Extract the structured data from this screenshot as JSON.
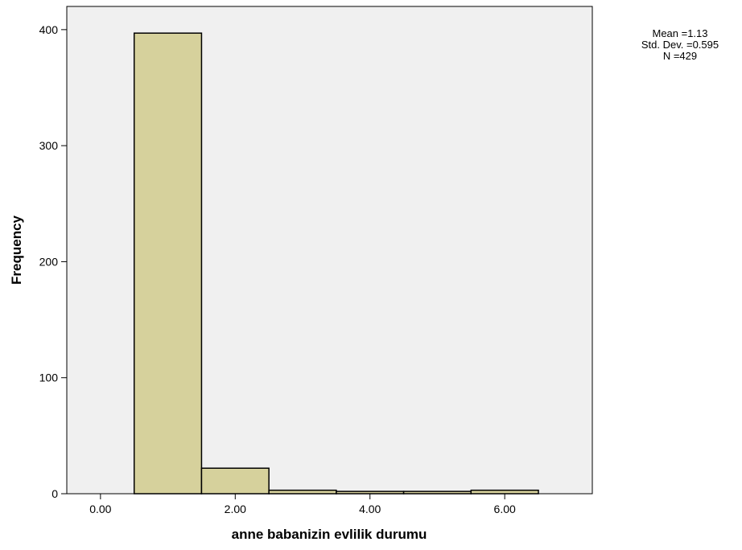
{
  "chart_data": {
    "type": "bar",
    "xlabel": "anne babanizin evlilik durumu",
    "ylabel": "Frequency",
    "xlim": [
      -0.5,
      7.3
    ],
    "ylim": [
      0,
      420
    ],
    "x_ticks": [
      0,
      2,
      4,
      6
    ],
    "x_tick_labels": [
      "0.00",
      "2.00",
      "4.00",
      "6.00"
    ],
    "y_ticks": [
      0,
      100,
      200,
      300,
      400
    ],
    "y_tick_labels": [
      "0",
      "100",
      "200",
      "300",
      "400"
    ],
    "bin_width": 1,
    "bins": [
      {
        "center": 1,
        "value": 397
      },
      {
        "center": 2,
        "value": 22
      },
      {
        "center": 3,
        "value": 3
      },
      {
        "center": 4,
        "value": 2
      },
      {
        "center": 5,
        "value": 2
      },
      {
        "center": 6,
        "value": 3
      }
    ],
    "grid": false,
    "legend": "none",
    "stats": {
      "mean": "Mean =1.13",
      "std_dev": "Std. Dev. =0.595",
      "n": "N =429"
    },
    "colors": {
      "plot_background": "#f0f0f0",
      "bar_fill": "#d6d19c",
      "bar_stroke": "#000000"
    }
  }
}
